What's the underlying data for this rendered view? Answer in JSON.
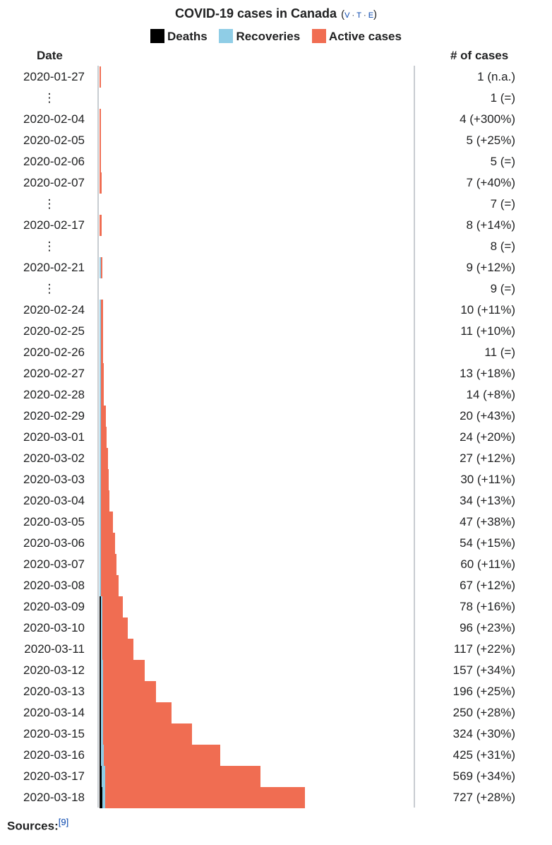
{
  "chart_data": {
    "type": "bar",
    "orientation": "horizontal",
    "stacked": true,
    "title": "COVID-19 cases in Canada",
    "navbox_links": [
      "V",
      "T",
      "E"
    ],
    "legend": [
      {
        "name": "Deaths",
        "color": "#000000"
      },
      {
        "name": "Recoveries",
        "color": "#8fcde6"
      },
      {
        "name": "Active cases",
        "color": "#f06d52"
      }
    ],
    "column_headers": {
      "date": "Date",
      "cases": "# of cases"
    },
    "xlim": [
      0,
      727
    ],
    "rows": [
      {
        "date": "2020-01-27",
        "deaths": 0,
        "recoveries": 0,
        "active": 1,
        "label": "1 (n.a.)"
      },
      {
        "date": "⋮",
        "deaths": 0,
        "recoveries": 0,
        "active": 0,
        "label": "1 (=)"
      },
      {
        "date": "2020-02-04",
        "deaths": 0,
        "recoveries": 0,
        "active": 4,
        "label": "4 (+300%)"
      },
      {
        "date": "2020-02-05",
        "deaths": 0,
        "recoveries": 0,
        "active": 5,
        "label": "5 (+25%)"
      },
      {
        "date": "2020-02-06",
        "deaths": 0,
        "recoveries": 0,
        "active": 5,
        "label": "5 (=)"
      },
      {
        "date": "2020-02-07",
        "deaths": 0,
        "recoveries": 0,
        "active": 7,
        "label": "7 (+40%)"
      },
      {
        "date": "⋮",
        "deaths": 0,
        "recoveries": 0,
        "active": 0,
        "label": "7 (=)"
      },
      {
        "date": "2020-02-17",
        "deaths": 0,
        "recoveries": 0,
        "active": 8,
        "label": "8 (+14%)"
      },
      {
        "date": "⋮",
        "deaths": 0,
        "recoveries": 0,
        "active": 0,
        "label": "8 (=)"
      },
      {
        "date": "2020-02-21",
        "deaths": 0,
        "recoveries": 3,
        "active": 6,
        "label": "9 (+12%)"
      },
      {
        "date": "⋮",
        "deaths": 0,
        "recoveries": 0,
        "active": 0,
        "label": "9 (=)"
      },
      {
        "date": "2020-02-24",
        "deaths": 0,
        "recoveries": 3,
        "active": 7,
        "label": "10 (+11%)"
      },
      {
        "date": "2020-02-25",
        "deaths": 0,
        "recoveries": 3,
        "active": 8,
        "label": "11 (+10%)"
      },
      {
        "date": "2020-02-26",
        "deaths": 0,
        "recoveries": 3,
        "active": 8,
        "label": "11 (=)"
      },
      {
        "date": "2020-02-27",
        "deaths": 0,
        "recoveries": 3,
        "active": 10,
        "label": "13 (+18%)"
      },
      {
        "date": "2020-02-28",
        "deaths": 0,
        "recoveries": 3,
        "active": 11,
        "label": "14 (+8%)"
      },
      {
        "date": "2020-02-29",
        "deaths": 0,
        "recoveries": 3,
        "active": 17,
        "label": "20 (+43%)"
      },
      {
        "date": "2020-03-01",
        "deaths": 0,
        "recoveries": 3,
        "active": 21,
        "label": "24 (+20%)"
      },
      {
        "date": "2020-03-02",
        "deaths": 0,
        "recoveries": 3,
        "active": 24,
        "label": "27 (+12%)"
      },
      {
        "date": "2020-03-03",
        "deaths": 0,
        "recoveries": 3,
        "active": 27,
        "label": "30 (+11%)"
      },
      {
        "date": "2020-03-04",
        "deaths": 0,
        "recoveries": 3,
        "active": 31,
        "label": "34 (+13%)"
      },
      {
        "date": "2020-03-05",
        "deaths": 0,
        "recoveries": 4,
        "active": 43,
        "label": "47 (+38%)"
      },
      {
        "date": "2020-03-06",
        "deaths": 0,
        "recoveries": 4,
        "active": 50,
        "label": "54 (+15%)"
      },
      {
        "date": "2020-03-07",
        "deaths": 0,
        "recoveries": 4,
        "active": 56,
        "label": "60 (+11%)"
      },
      {
        "date": "2020-03-08",
        "deaths": 0,
        "recoveries": 6,
        "active": 61,
        "label": "67 (+12%)"
      },
      {
        "date": "2020-03-09",
        "deaths": 1,
        "recoveries": 6,
        "active": 71,
        "label": "78 (+16%)"
      },
      {
        "date": "2020-03-10",
        "deaths": 1,
        "recoveries": 6,
        "active": 89,
        "label": "96 (+23%)"
      },
      {
        "date": "2020-03-11",
        "deaths": 1,
        "recoveries": 6,
        "active": 110,
        "label": "117 (+22%)"
      },
      {
        "date": "2020-03-12",
        "deaths": 1,
        "recoveries": 8,
        "active": 148,
        "label": "157 (+34%)"
      },
      {
        "date": "2020-03-13",
        "deaths": 1,
        "recoveries": 8,
        "active": 187,
        "label": "196 (+25%)"
      },
      {
        "date": "2020-03-14",
        "deaths": 1,
        "recoveries": 8,
        "active": 241,
        "label": "250 (+28%)"
      },
      {
        "date": "2020-03-15",
        "deaths": 1,
        "recoveries": 8,
        "active": 315,
        "label": "324 (+30%)"
      },
      {
        "date": "2020-03-16",
        "deaths": 4,
        "recoveries": 9,
        "active": 412,
        "label": "425 (+31%)"
      },
      {
        "date": "2020-03-17",
        "deaths": 8,
        "recoveries": 11,
        "active": 550,
        "label": "569 (+34%)"
      },
      {
        "date": "2020-03-18",
        "deaths": 9,
        "recoveries": 11,
        "active": 707,
        "label": "727 (+28%)"
      }
    ]
  },
  "footer": {
    "sources_label": "Sources:",
    "ref": "[9]"
  }
}
